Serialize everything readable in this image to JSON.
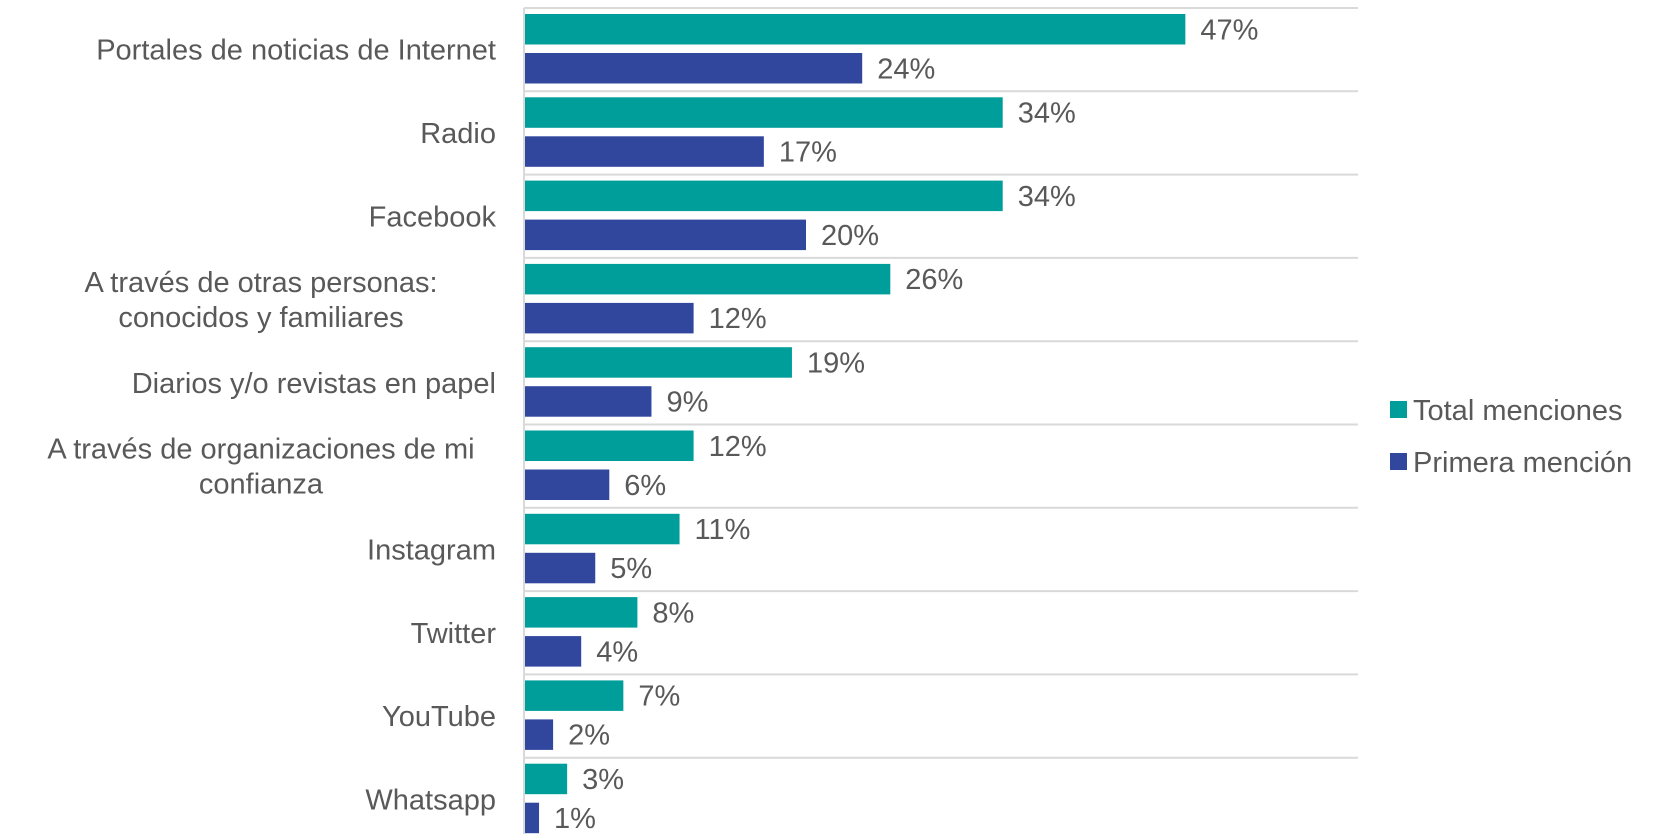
{
  "chart_data": {
    "type": "bar",
    "orientation": "horizontal",
    "categories": [
      [
        "Portales de noticias de Internet"
      ],
      [
        "Radio"
      ],
      [
        "Facebook"
      ],
      [
        "A través de otras personas:",
        "conocidos y familiares"
      ],
      [
        "Diarios y/o revistas en papel"
      ],
      [
        "A través de organizaciones de mi",
        "confianza"
      ],
      [
        "Instagram"
      ],
      [
        "Twitter"
      ],
      [
        "YouTube"
      ],
      [
        "Whatsapp"
      ]
    ],
    "series": [
      {
        "name": "Total menciones",
        "color": "#009E9A",
        "values": [
          47,
          34,
          34,
          26,
          19,
          12,
          11,
          8,
          7,
          3
        ],
        "labels": [
          "47%",
          "34%",
          "34%",
          "26%",
          "19%",
          "12%",
          "11%",
          "8%",
          "7%",
          "3%"
        ]
      },
      {
        "name": "Primera mención",
        "color": "#31479E",
        "values": [
          24,
          17,
          20,
          12,
          9,
          6,
          5,
          4,
          2,
          1
        ],
        "labels": [
          "24%",
          "17%",
          "20%",
          "12%",
          "9%",
          "6%",
          "5%",
          "4%",
          "2%",
          "1%"
        ]
      }
    ],
    "xlim": [
      0,
      60
    ],
    "gridlines": true,
    "legend_position": "right",
    "colors": {
      "axis": "#d9d9d9",
      "text": "#595959"
    }
  }
}
